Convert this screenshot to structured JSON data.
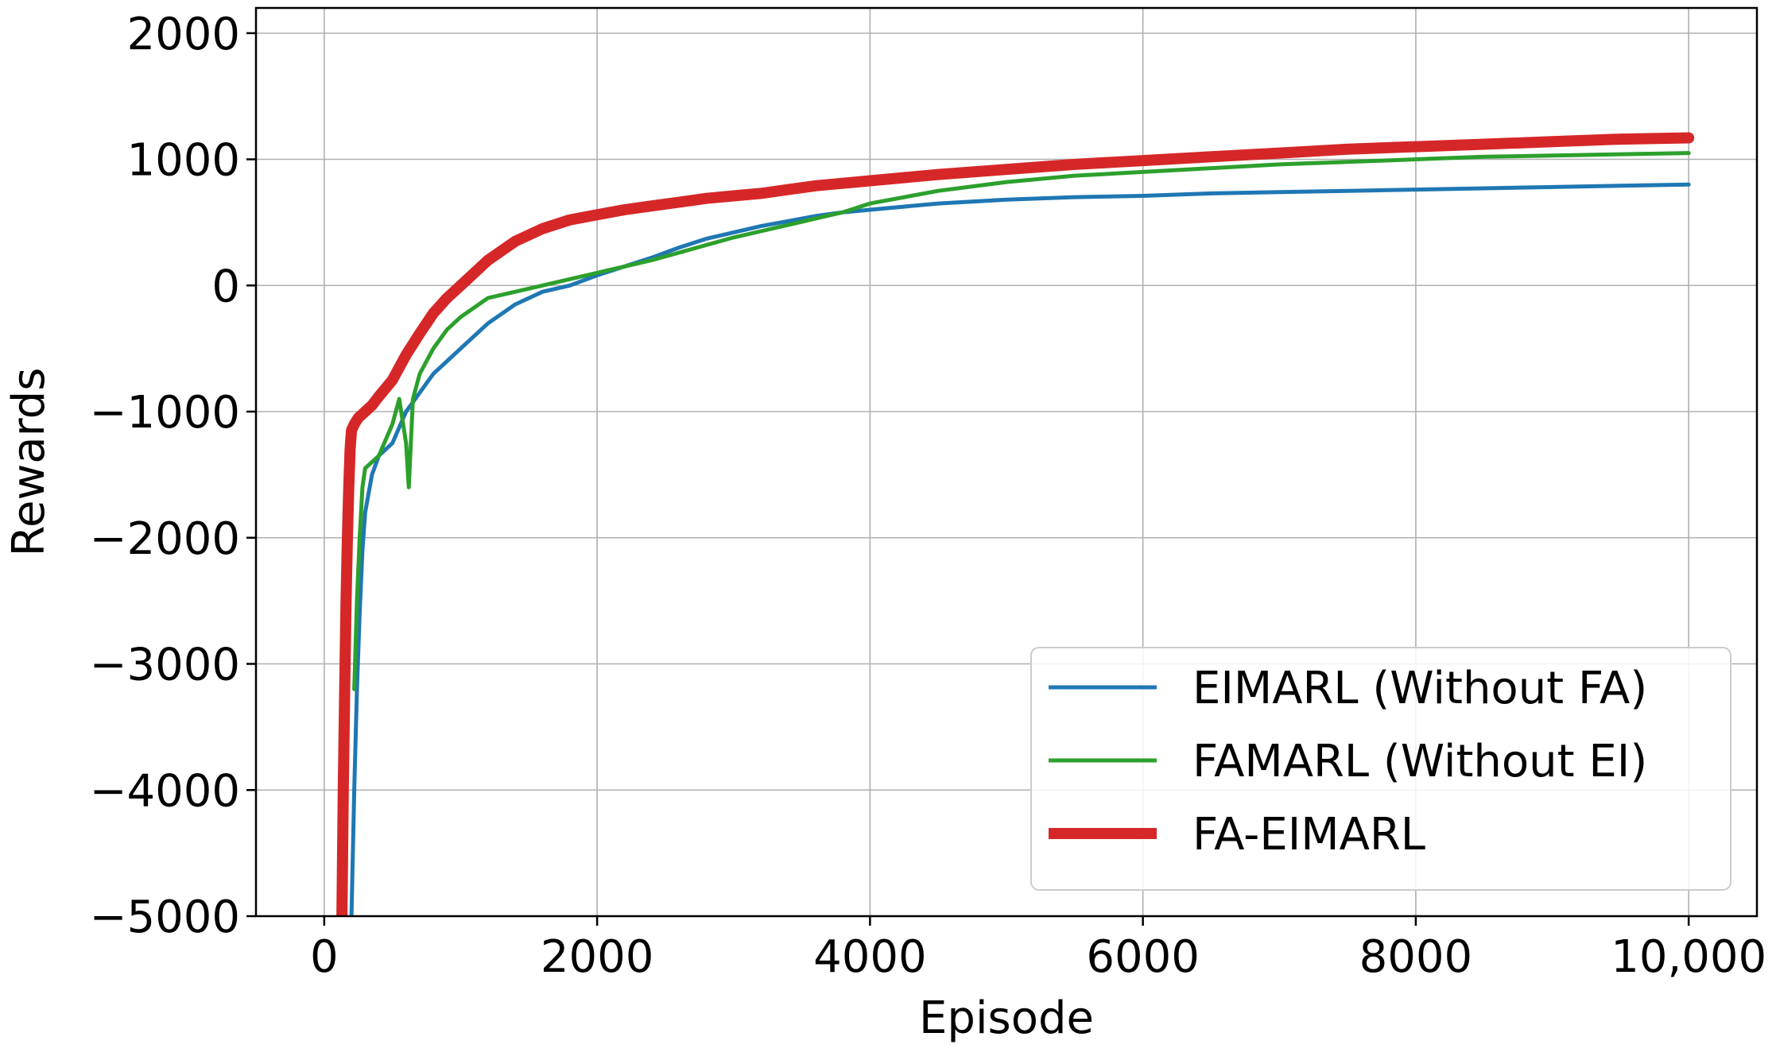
{
  "chart_data": {
    "type": "line",
    "title": "",
    "xlabel": "Episode",
    "ylabel": "Rewards",
    "xlim": [
      -500,
      10500
    ],
    "ylim": [
      -5000,
      2200
    ],
    "xticks": [
      0,
      2000,
      4000,
      6000,
      8000,
      10000
    ],
    "xtick_labels": [
      "0",
      "2000",
      "4000",
      "6000",
      "8000",
      "10,000"
    ],
    "yticks": [
      -5000,
      -4000,
      -3000,
      -2000,
      -1000,
      0,
      1000,
      2000
    ],
    "ytick_labels": [
      "−5000",
      "−4000",
      "−3000",
      "−2000",
      "−1000",
      "0",
      "1000",
      "2000"
    ],
    "grid": true,
    "legend_position": "lower-right",
    "series": [
      {
        "name": "EIMARL (Without FA)",
        "color": "#1f77b4",
        "x": [
          200,
          220,
          240,
          260,
          280,
          300,
          350,
          400,
          500,
          600,
          700,
          800,
          900,
          1000,
          1200,
          1400,
          1600,
          1800,
          2000,
          2200,
          2400,
          2600,
          2800,
          3000,
          3200,
          3400,
          3600,
          3800,
          4000,
          4500,
          5000,
          5500,
          6000,
          6500,
          7000,
          7500,
          8000,
          8500,
          9000,
          9500,
          10000
        ],
        "y": [
          -5000,
          -4000,
          -3200,
          -2600,
          -2100,
          -1800,
          -1500,
          -1350,
          -1250,
          -1000,
          -850,
          -700,
          -600,
          -500,
          -300,
          -150,
          -50,
          0,
          80,
          150,
          220,
          300,
          370,
          420,
          470,
          510,
          550,
          580,
          600,
          650,
          680,
          700,
          710,
          730,
          740,
          750,
          760,
          770,
          780,
          790,
          800
        ]
      },
      {
        "name": "FAMARL (Without EI)",
        "color": "#2ca02c",
        "x": [
          220,
          240,
          260,
          280,
          300,
          350,
          400,
          500,
          550,
          600,
          620,
          650,
          700,
          800,
          900,
          1000,
          1200,
          1400,
          1600,
          1800,
          2000,
          2200,
          2400,
          2600,
          2800,
          3000,
          3200,
          3400,
          3600,
          3800,
          4000,
          4500,
          5000,
          5500,
          6000,
          6500,
          7000,
          7500,
          8000,
          8500,
          9000,
          9500,
          10000
        ],
        "y": [
          -3200,
          -2500,
          -2000,
          -1600,
          -1450,
          -1400,
          -1350,
          -1100,
          -900,
          -1250,
          -1600,
          -900,
          -700,
          -500,
          -350,
          -250,
          -100,
          -50,
          0,
          50,
          100,
          150,
          200,
          260,
          320,
          380,
          430,
          480,
          530,
          580,
          650,
          750,
          820,
          870,
          900,
          930,
          960,
          980,
          1000,
          1020,
          1030,
          1040,
          1050
        ]
      },
      {
        "name": "FA-EIMARL",
        "color": "#d62728",
        "x": [
          130,
          140,
          150,
          160,
          170,
          180,
          190,
          200,
          220,
          250,
          300,
          350,
          400,
          500,
          600,
          700,
          800,
          900,
          1000,
          1200,
          1400,
          1600,
          1800,
          2000,
          2200,
          2400,
          2600,
          2800,
          3000,
          3200,
          3400,
          3600,
          3800,
          4000,
          4500,
          5000,
          5500,
          6000,
          6500,
          7000,
          7500,
          8000,
          8500,
          9000,
          9500,
          10000
        ],
        "y": [
          -5000,
          -4000,
          -3200,
          -2500,
          -2000,
          -1600,
          -1300,
          -1150,
          -1100,
          -1050,
          -1000,
          -950,
          -880,
          -750,
          -550,
          -380,
          -220,
          -100,
          0,
          200,
          350,
          450,
          520,
          560,
          600,
          630,
          660,
          690,
          710,
          730,
          760,
          790,
          810,
          830,
          880,
          920,
          960,
          990,
          1020,
          1050,
          1080,
          1100,
          1120,
          1140,
          1160,
          1170
        ]
      }
    ]
  }
}
